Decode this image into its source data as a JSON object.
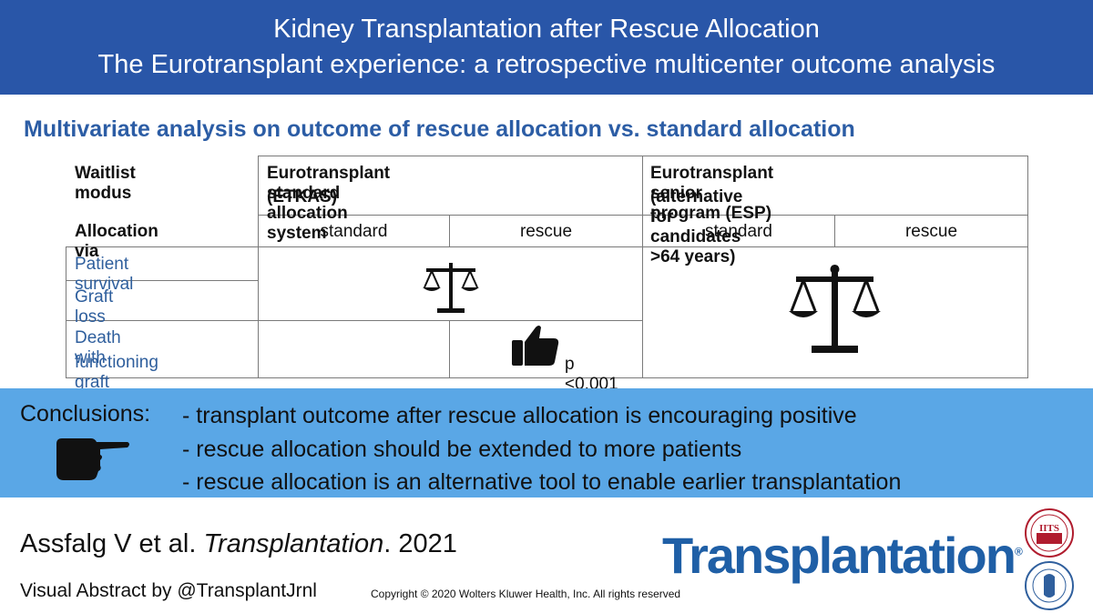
{
  "header": {
    "title_line1": "Kidney Transplantation after Rescue Allocation",
    "title_line2": "The Eurotransplant experience: a retrospective multicenter outcome analysis"
  },
  "subtitle": "Multivariate analysis on outcome of rescue allocation vs. standard allocation",
  "table": {
    "waitlist_label": "Waitlist modus",
    "etkas_line1": "Eurotransplant standard allocation system",
    "etkas_line2": "(ETKAS)",
    "esp_line1": "Eurotransplant senior program (ESP)",
    "esp_line2": "(alternative for candidates >64 years)",
    "allocation_label": "Allocation via",
    "standard": "standard",
    "rescue": "rescue",
    "rows": {
      "patient_survival": "Patient survival",
      "graft_loss": "Graft loss",
      "death_line1": "Death with",
      "death_line2": "functioning graft"
    },
    "p_value": "p <0.001"
  },
  "conclusions": {
    "label": "Conclusions:",
    "items": [
      "- transplant outcome after rescue allocation is encouraging positive",
      "- rescue allocation should be extended to more patients",
      "- rescue allocation is an alternative tool to enable earlier transplantation"
    ]
  },
  "footer": {
    "authors": "Assfalg V et al. ",
    "journal_italic": "Transplantation",
    "year": ". 2021",
    "visual_abstract": "Visual Abstract by @TransplantJrnl",
    "copyright": "Copyright © 2020 Wolters Kluwer Health, Inc. All rights reserved",
    "logo_text": "Transplantation",
    "logo_mark": "®",
    "seal_top_text": "IITS"
  },
  "colors": {
    "header_bg": "#2956a8",
    "subtitle": "#2c5da5",
    "conclusions_bg": "#5aa7e6",
    "logo": "#1f5fa6"
  }
}
